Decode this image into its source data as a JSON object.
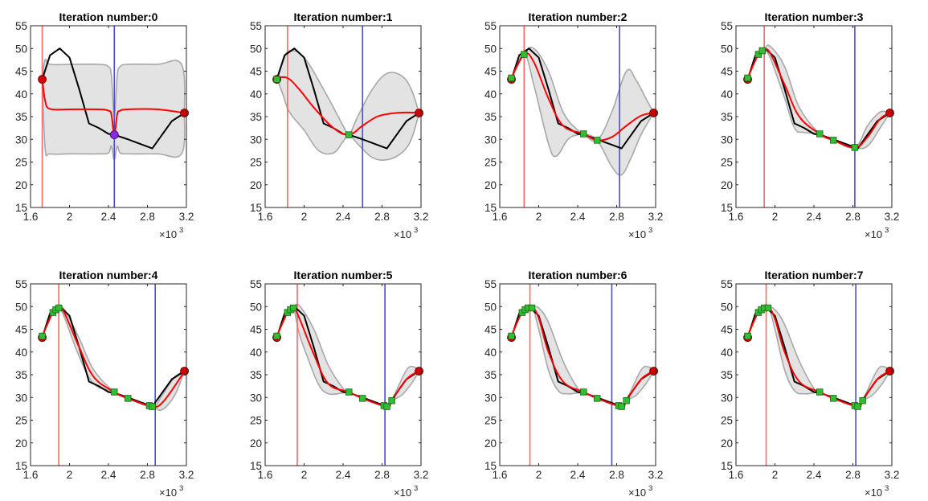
{
  "chart_data": {
    "type": "line",
    "xlim": [
      1600,
      3200
    ],
    "ylim": [
      15,
      55
    ],
    "x_ticks": [
      "1.6",
      "2",
      "2.4",
      "2.8",
      "3.2"
    ],
    "y_ticks": [
      "15",
      "20",
      "25",
      "30",
      "35",
      "40",
      "45",
      "50",
      "55"
    ],
    "x_exponent_base": "×10",
    "x_exponent": "3",
    "grid": false,
    "legend": "none",
    "colors": {
      "true_function": "#000000",
      "mean": "#ff0000",
      "band": "#e3e3e3",
      "band_edge": "#a8a8a8",
      "current_point_line": "#ff6666",
      "next_point_line": "#4a4ad8",
      "endpoint_marker": "#d40000",
      "sample_marker": "#2fbf2f"
    },
    "true_function": {
      "x": [
        1720,
        1800,
        1900,
        2000,
        2100,
        2200,
        2300,
        2400,
        2460,
        2600,
        2700,
        2850,
        2950,
        3050,
        3180
      ],
      "y": [
        43.2,
        48.5,
        50,
        48,
        41,
        33.5,
        32.5,
        31.2,
        31,
        30,
        29.2,
        28,
        31,
        34,
        35.8
      ]
    },
    "endpoints": [
      {
        "x": 1720,
        "y": 43.2
      },
      {
        "x": 3180,
        "y": 35.8
      }
    ],
    "panels": [
      {
        "title": "Iteration number:0",
        "current_x": 1720,
        "next_x": 2460,
        "samples": [],
        "next_marker": {
          "x": 2460,
          "y": 31
        },
        "mean": {
          "x": [
            1720,
            1750,
            1800,
            2000,
            2300,
            2400,
            2430,
            2460,
            2490,
            2520,
            2600,
            2900,
            3180
          ],
          "y": [
            43.2,
            38.5,
            36.7,
            36.6,
            36.6,
            36.3,
            35.5,
            31,
            35.5,
            36.3,
            36.6,
            36.6,
            35.8
          ]
        },
        "upper": {
          "x": [
            1720,
            1750,
            1800,
            2000,
            2300,
            2400,
            2430,
            2460,
            2490,
            2520,
            2600,
            2900,
            3150,
            3180
          ],
          "y": [
            43.2,
            47.5,
            46.5,
            46.5,
            46.5,
            46,
            44,
            35,
            44,
            46,
            46.5,
            46.5,
            46.5,
            35.8
          ]
        },
        "lower": {
          "x": [
            1720,
            1750,
            1800,
            2000,
            2300,
            2400,
            2430,
            2460,
            2490,
            2520,
            2600,
            2900,
            3150,
            3180
          ],
          "y": [
            43.2,
            28,
            26.8,
            26.8,
            26.8,
            27,
            28.5,
            25.5,
            28.5,
            27,
            26.8,
            26.8,
            26.8,
            35.8
          ]
        }
      },
      {
        "title": "Iteration number:1",
        "current_x": 1830,
        "next_x": 2600,
        "samples": [
          {
            "x": 1720,
            "y": 43.2
          },
          {
            "x": 2460,
            "y": 31
          }
        ],
        "next_marker": null,
        "mean": {
          "x": [
            1720,
            1830,
            1950,
            2100,
            2300,
            2460,
            2600,
            2750,
            2900,
            3050,
            3180
          ],
          "y": [
            43.5,
            43.5,
            41,
            37,
            32.5,
            31,
            33,
            35,
            35.7,
            35.9,
            35.8
          ]
        },
        "upper": {
          "x": [
            1720,
            1780,
            1850,
            2000,
            2200,
            2400,
            2460,
            2550,
            2700,
            2850,
            3000,
            3100,
            3180
          ],
          "y": [
            43.5,
            47,
            49.5,
            48,
            41,
            33,
            31,
            35,
            41,
            44.5,
            44,
            41,
            35.8
          ]
        },
        "lower": {
          "x": [
            1720,
            1780,
            1850,
            2000,
            2150,
            2300,
            2400,
            2460,
            2550,
            2700,
            2850,
            3000,
            3100,
            3180
          ],
          "y": [
            43.5,
            40,
            36,
            32,
            27.5,
            27,
            29.5,
            31,
            29,
            26,
            25.5,
            27,
            30,
            35.8
          ]
        }
      },
      {
        "title": "Iteration number:2",
        "current_x": 1850,
        "next_x": 2830,
        "samples": [
          {
            "x": 1720,
            "y": 43.5
          },
          {
            "x": 1850,
            "y": 48.7
          },
          {
            "x": 2460,
            "y": 31.2
          },
          {
            "x": 2600,
            "y": 29.8
          }
        ],
        "next_marker": null,
        "mean": {
          "x": [
            1720,
            1850,
            1950,
            2100,
            2250,
            2460,
            2600,
            2750,
            2900,
            3050,
            3180
          ],
          "y": [
            43.5,
            48.7,
            47,
            39,
            33,
            31.2,
            29.8,
            30.5,
            33,
            35.2,
            35.8
          ]
        },
        "upper": {
          "x": [
            1720,
            1850,
            1950,
            2100,
            2250,
            2400,
            2460,
            2600,
            2750,
            2900,
            3000,
            3100,
            3180
          ],
          "y": [
            43.5,
            48.7,
            50,
            45,
            36,
            32,
            31.2,
            29.8,
            36,
            45,
            43,
            39,
            35.8
          ]
        },
        "lower": {
          "x": [
            1720,
            1850,
            1950,
            2100,
            2180,
            2300,
            2400,
            2460,
            2600,
            2750,
            2850,
            2950,
            3050,
            3180
          ],
          "y": [
            43.5,
            48.7,
            42,
            29,
            26.3,
            30,
            31,
            31.2,
            29.8,
            24,
            22.2,
            26,
            31,
            35.8
          ]
        }
      },
      {
        "title": "Iteration number:3",
        "current_x": 1890,
        "next_x": 2820,
        "samples": [
          {
            "x": 1720,
            "y": 43.5
          },
          {
            "x": 1830,
            "y": 48.7
          },
          {
            "x": 1870,
            "y": 49.5
          },
          {
            "x": 2460,
            "y": 31.2
          },
          {
            "x": 2600,
            "y": 29.8
          },
          {
            "x": 2820,
            "y": 28.2
          }
        ],
        "next_marker": null,
        "mean": {
          "x": [
            1720,
            1830,
            1890,
            1950,
            2100,
            2250,
            2460,
            2600,
            2820,
            2950,
            3080,
            3180
          ],
          "y": [
            43.5,
            48.7,
            49.6,
            49,
            42,
            35,
            31.2,
            29.8,
            28.2,
            30.5,
            34.5,
            35.8
          ]
        },
        "upper": {
          "x": [
            1720,
            1830,
            1890,
            1950,
            2100,
            2250,
            2460,
            2600,
            2820,
            2950,
            3080,
            3180
          ],
          "y": [
            43.5,
            48.7,
            49.8,
            50.5,
            46,
            37,
            31.2,
            29.8,
            28.2,
            33,
            36,
            35.8
          ]
        },
        "lower": {
          "x": [
            1720,
            1830,
            1890,
            1950,
            2100,
            2200,
            2300,
            2460,
            2600,
            2820,
            2950,
            3080,
            3180
          ],
          "y": [
            43.5,
            48.7,
            49.4,
            48,
            39,
            32.5,
            31.5,
            31.2,
            29.8,
            28.2,
            28.5,
            32.5,
            35.8
          ]
        }
      },
      {
        "title": "Iteration number:4",
        "current_x": 1890,
        "next_x": 2880,
        "samples": [
          {
            "x": 1720,
            "y": 43.5
          },
          {
            "x": 1830,
            "y": 48.7
          },
          {
            "x": 1860,
            "y": 49.3
          },
          {
            "x": 1890,
            "y": 49.7
          },
          {
            "x": 2460,
            "y": 31.2
          },
          {
            "x": 2600,
            "y": 29.8
          },
          {
            "x": 2820,
            "y": 28.2
          },
          {
            "x": 2850,
            "y": 28
          }
        ],
        "next_marker": null,
        "mean": {
          "x": [
            1720,
            1830,
            1890,
            1950,
            2100,
            2250,
            2460,
            2600,
            2850,
            2950,
            3080,
            3180
          ],
          "y": [
            43.5,
            48.7,
            49.7,
            48.5,
            41,
            34.5,
            31.2,
            29.8,
            28,
            28.8,
            32.5,
            35.8
          ]
        },
        "upper": {
          "x": [
            1720,
            1830,
            1890,
            1950,
            2100,
            2250,
            2460,
            2600,
            2850,
            2950,
            3080,
            3180
          ],
          "y": [
            43.5,
            48.7,
            49.7,
            49.3,
            43,
            36,
            31.2,
            29.8,
            28,
            30.5,
            34.5,
            35.8
          ]
        },
        "lower": {
          "x": [
            1720,
            1830,
            1890,
            1950,
            2100,
            2250,
            2460,
            2600,
            2850,
            2950,
            3080,
            3180
          ],
          "y": [
            43.5,
            48.7,
            49.7,
            47.5,
            39,
            33,
            31.2,
            29.8,
            28,
            27.3,
            30.5,
            35.8
          ]
        }
      },
      {
        "title": "Iteration number:5",
        "current_x": 1930,
        "next_x": 2830,
        "samples": [
          {
            "x": 1720,
            "y": 43.5
          },
          {
            "x": 1830,
            "y": 48.7
          },
          {
            "x": 1860,
            "y": 49.3
          },
          {
            "x": 1890,
            "y": 49.7
          },
          {
            "x": 2460,
            "y": 31.2
          },
          {
            "x": 2600,
            "y": 29.8
          },
          {
            "x": 2820,
            "y": 28.2
          },
          {
            "x": 2850,
            "y": 28
          },
          {
            "x": 2900,
            "y": 29.3
          }
        ],
        "next_marker": null,
        "mean": {
          "x": [
            1720,
            1830,
            1890,
            1950,
            2100,
            2250,
            2460,
            2600,
            2850,
            2900,
            3050,
            3180
          ],
          "y": [
            43.5,
            48.7,
            49.7,
            47.5,
            39.5,
            33,
            31.2,
            29.8,
            28,
            29.3,
            34,
            35.8
          ]
        },
        "upper": {
          "x": [
            1720,
            1830,
            1890,
            1950,
            2100,
            2250,
            2400,
            2460,
            2600,
            2850,
            2900,
            3050,
            3130,
            3180
          ],
          "y": [
            43.5,
            48.7,
            49.7,
            50.2,
            45,
            37,
            32,
            31.2,
            29.8,
            28,
            29.3,
            36,
            36.7,
            35.8
          ]
        },
        "lower": {
          "x": [
            1720,
            1830,
            1890,
            1950,
            2050,
            2150,
            2250,
            2400,
            2460,
            2600,
            2850,
            2900,
            3000,
            3100,
            3180
          ],
          "y": [
            43.5,
            48.7,
            49.7,
            44,
            38,
            32.8,
            30.8,
            31,
            31.2,
            29.8,
            28,
            29.3,
            30.5,
            33,
            35.8
          ]
        }
      },
      {
        "title": "Iteration number:6",
        "current_x": 1910,
        "next_x": 2750,
        "samples": [
          {
            "x": 1720,
            "y": 43.5
          },
          {
            "x": 1830,
            "y": 48.7
          },
          {
            "x": 1860,
            "y": 49.3
          },
          {
            "x": 1890,
            "y": 49.7
          },
          {
            "x": 1930,
            "y": 49.7
          },
          {
            "x": 2460,
            "y": 31.2
          },
          {
            "x": 2600,
            "y": 29.8
          },
          {
            "x": 2820,
            "y": 28.2
          },
          {
            "x": 2850,
            "y": 28
          },
          {
            "x": 2900,
            "y": 29.3
          }
        ],
        "next_marker": null,
        "mean": {
          "x": [
            1720,
            1830,
            1930,
            2000,
            2100,
            2250,
            2460,
            2600,
            2850,
            2900,
            3050,
            3180
          ],
          "y": [
            43.5,
            48.7,
            49.7,
            47.5,
            40,
            33.5,
            31.2,
            29.8,
            28,
            29.3,
            34,
            35.8
          ]
        },
        "upper": {
          "x": [
            1720,
            1830,
            1930,
            2000,
            2100,
            2250,
            2400,
            2460,
            2600,
            2850,
            2900,
            3050,
            3130,
            3180
          ],
          "y": [
            43.5,
            48.7,
            49.7,
            49.7,
            46.5,
            38,
            32,
            31.2,
            29.8,
            28,
            29.3,
            36,
            36.7,
            35.8
          ]
        },
        "lower": {
          "x": [
            1720,
            1830,
            1930,
            2000,
            2100,
            2200,
            2300,
            2400,
            2460,
            2600,
            2850,
            2900,
            3000,
            3100,
            3180
          ],
          "y": [
            43.5,
            48.7,
            49.7,
            45,
            36,
            31.5,
            30.8,
            31,
            31.2,
            29.8,
            28,
            29.3,
            30.5,
            33,
            35.8
          ]
        }
      },
      {
        "title": "Iteration number:7",
        "current_x": 1910,
        "next_x": 2830,
        "samples": [
          {
            "x": 1720,
            "y": 43.5
          },
          {
            "x": 1830,
            "y": 48.7
          },
          {
            "x": 1860,
            "y": 49.3
          },
          {
            "x": 1890,
            "y": 49.7
          },
          {
            "x": 1930,
            "y": 49.7
          },
          {
            "x": 2460,
            "y": 31.2
          },
          {
            "x": 2600,
            "y": 29.8
          },
          {
            "x": 2820,
            "y": 28.2
          },
          {
            "x": 2850,
            "y": 28
          },
          {
            "x": 2900,
            "y": 29.3
          }
        ],
        "next_marker": null,
        "mean": {
          "x": [
            1720,
            1830,
            1930,
            2000,
            2100,
            2250,
            2460,
            2600,
            2850,
            2900,
            3050,
            3180
          ],
          "y": [
            43.5,
            48.7,
            49.7,
            47.3,
            40,
            33.5,
            31.2,
            29.8,
            28,
            29.3,
            34,
            35.8
          ]
        },
        "upper": {
          "x": [
            1720,
            1830,
            1930,
            2000,
            2100,
            2250,
            2400,
            2460,
            2600,
            2850,
            2900,
            3050,
            3130,
            3180
          ],
          "y": [
            43.5,
            48.7,
            49.7,
            49.3,
            46,
            38,
            32,
            31.2,
            29.8,
            28,
            29.3,
            36,
            36.7,
            35.8
          ]
        },
        "lower": {
          "x": [
            1720,
            1830,
            1930,
            2000,
            2100,
            2200,
            2300,
            2400,
            2460,
            2600,
            2850,
            2900,
            3000,
            3100,
            3180
          ],
          "y": [
            43.5,
            48.7,
            49.7,
            45,
            36,
            31.5,
            30.8,
            31,
            31.2,
            29.8,
            28,
            29.3,
            30.5,
            33,
            35.8
          ]
        }
      }
    ]
  }
}
